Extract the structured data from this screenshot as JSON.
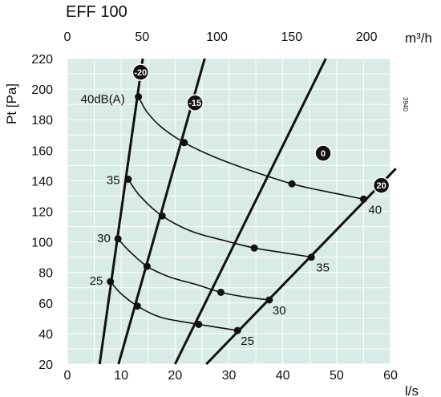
{
  "chart_data": {
    "type": "line",
    "title": "EFF 100",
    "xlabel": "l/s",
    "x2label": "m³/h",
    "ylabel": "Pt [Pa]",
    "side_code": "3940",
    "xlim": [
      0,
      60
    ],
    "ylim": [
      20,
      220
    ],
    "x2lim": [
      0,
      216
    ],
    "xticks": [
      "0",
      "10",
      "20",
      "30",
      "40",
      "50",
      "60"
    ],
    "x2ticks": [
      "0",
      "50",
      "100",
      "150",
      "200"
    ],
    "yticks": [
      "20",
      "40",
      "60",
      "80",
      "100",
      "120",
      "140",
      "160",
      "180",
      "200",
      "220"
    ],
    "grid": true,
    "damper_lines": [
      {
        "name": "-20",
        "points": [
          [
            6.0,
            20
          ],
          [
            14.0,
            220
          ]
        ],
        "label_at": [
          13.6,
          211
        ]
      },
      {
        "name": "-15",
        "points": [
          [
            9.5,
            20
          ],
          [
            25.5,
            220
          ]
        ],
        "label_at": [
          23.7,
          191
        ]
      },
      {
        "name": "0",
        "points": [
          [
            20.0,
            20
          ],
          [
            48.0,
            220
          ]
        ],
        "label_at": [
          47.5,
          158
        ]
      },
      {
        "name": "20",
        "points": [
          [
            25.8,
            20
          ],
          [
            61.0,
            148
          ]
        ],
        "label_at": [
          58.3,
          137
        ]
      }
    ],
    "sound_curves": [
      {
        "name": "40dB(A)",
        "points": [
          [
            13.2,
            195
          ],
          [
            14.8,
            185
          ],
          [
            17.5,
            175
          ],
          [
            21.7,
            165
          ],
          [
            27.0,
            156
          ],
          [
            33.0,
            148
          ],
          [
            41.7,
            138
          ],
          [
            48.0,
            133
          ],
          [
            55.0,
            128
          ]
        ],
        "label": "40dB(A)",
        "end_label": "40"
      },
      {
        "name": "35",
        "points": [
          [
            11.3,
            141
          ],
          [
            13.5,
            130
          ],
          [
            17.6,
            117
          ],
          [
            23.0,
            107
          ],
          [
            29.0,
            101
          ],
          [
            34.7,
            96
          ],
          [
            40.0,
            93
          ],
          [
            45.3,
            90
          ]
        ],
        "label": "35",
        "end_label": "35"
      },
      {
        "name": "30",
        "points": [
          [
            9.4,
            102
          ],
          [
            11.5,
            94
          ],
          [
            14.8,
            84
          ],
          [
            19.0,
            77
          ],
          [
            24.0,
            72
          ],
          [
            28.5,
            67
          ],
          [
            33.0,
            64
          ],
          [
            37.5,
            62
          ]
        ],
        "label": "30",
        "end_label": "30"
      },
      {
        "name": "25",
        "points": [
          [
            8.0,
            74
          ],
          [
            10.0,
            66
          ],
          [
            13.0,
            58
          ],
          [
            17.0,
            51
          ],
          [
            21.0,
            48
          ],
          [
            24.4,
            46
          ],
          [
            28.0,
            44
          ],
          [
            31.6,
            42
          ]
        ],
        "label": "25",
        "end_label": "25"
      }
    ],
    "nodes": [
      [
        13.2,
        195
      ],
      [
        21.7,
        165
      ],
      [
        41.7,
        138
      ],
      [
        55.0,
        128
      ],
      [
        11.3,
        141
      ],
      [
        17.6,
        117
      ],
      [
        34.7,
        96
      ],
      [
        45.3,
        90
      ],
      [
        9.4,
        102
      ],
      [
        14.8,
        84
      ],
      [
        28.5,
        67
      ],
      [
        37.5,
        62
      ],
      [
        8.0,
        74
      ],
      [
        13.0,
        58
      ],
      [
        24.4,
        46
      ],
      [
        31.6,
        42
      ]
    ]
  }
}
